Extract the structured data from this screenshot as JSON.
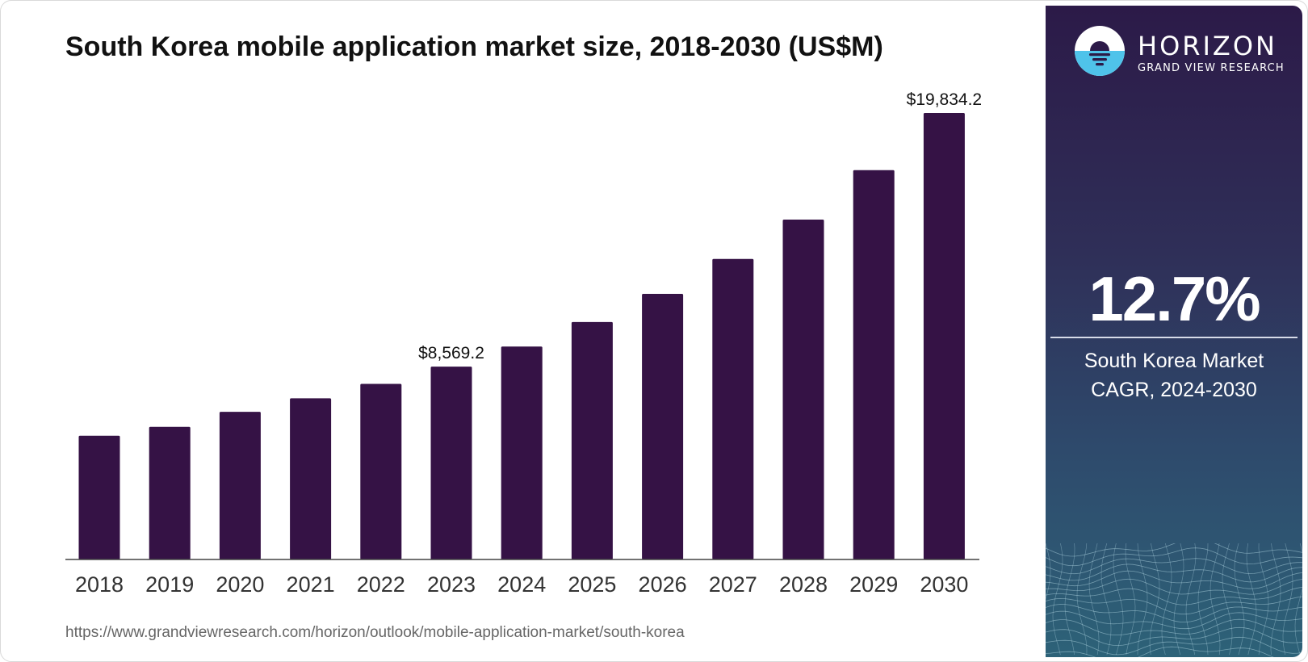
{
  "title": "South Korea mobile application market size, 2018-2030 (US$M)",
  "source_url": "https://www.grandviewresearch.com/horizon/outlook/mobile-application-market/south-korea",
  "brand": {
    "name": "HORIZON",
    "subtitle": "GRAND VIEW RESEARCH",
    "logo_icon": "horizon-sunset-logo-icon"
  },
  "cagr": {
    "value": "12.7%",
    "label_line1": "South Korea Market",
    "label_line2": "CAGR, 2024-2030"
  },
  "colors": {
    "bar": "#351245",
    "panel_top": "#2c1a48",
    "panel_bottom": "#2d6278",
    "logo_water": "#4fc3ea"
  },
  "chart_data": {
    "type": "bar",
    "title": "South Korea mobile application market size, 2018-2030 (US$M)",
    "categories": [
      "2018",
      "2019",
      "2020",
      "2021",
      "2022",
      "2023",
      "2024",
      "2025",
      "2026",
      "2027",
      "2028",
      "2029",
      "2030"
    ],
    "values": [
      5500,
      5890,
      6560,
      7160,
      7800,
      8569.2,
      9460,
      10550,
      11800,
      13350,
      15100,
      17300,
      19834.2
    ],
    "data_labels": [
      {
        "category": "2023",
        "text": "$8,569.2"
      },
      {
        "category": "2030",
        "text": "$19,834.2"
      }
    ],
    "ylim": [
      0,
      19834.2
    ],
    "xlabel": "",
    "ylabel": "",
    "grid": false,
    "legend": "none"
  }
}
